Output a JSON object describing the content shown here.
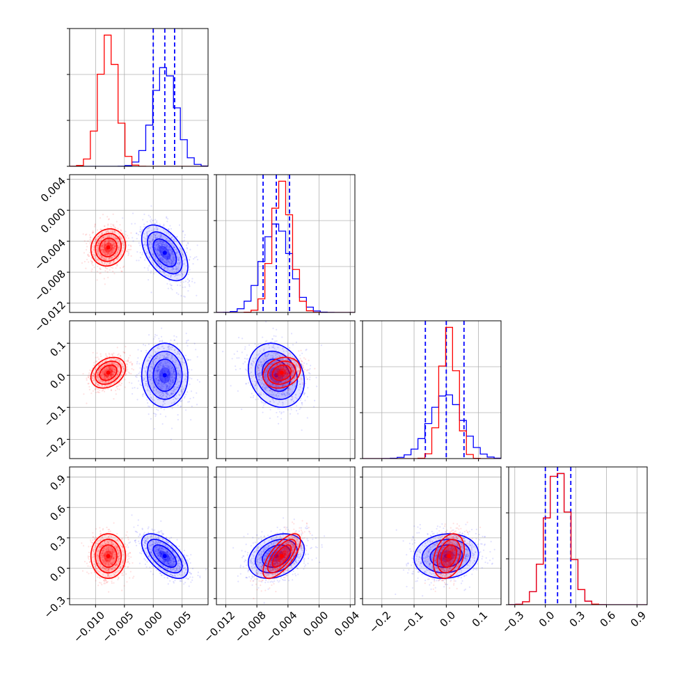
{
  "chart_data": {
    "type": "corner",
    "grid": true,
    "colors": {
      "blue": "#0000ff",
      "red": "#ff0000"
    },
    "parameters": [
      {
        "range": [
          -0.0145,
          0.0095
        ],
        "ticks": [
          -0.01,
          -0.005,
          0.0,
          0.005
        ],
        "tick_labels": [
          "−0.010",
          "−0.005",
          "0.000",
          "0.005"
        ]
      },
      {
        "range": [
          -0.0132,
          0.0046
        ],
        "ticks": [
          -0.012,
          -0.008,
          -0.004,
          0.0,
          0.004
        ],
        "tick_labels": [
          "−0.012",
          "−0.008",
          "−0.004",
          "0.000",
          "0.004"
        ]
      },
      {
        "range": [
          -0.26,
          0.17
        ],
        "ticks": [
          -0.2,
          -0.1,
          0.0,
          0.1
        ],
        "tick_labels": [
          "−0.2",
          "−0.1",
          "0.0",
          "0.1"
        ]
      },
      {
        "range": [
          -0.36,
          1.0
        ],
        "ticks": [
          -0.3,
          0.0,
          0.3,
          0.6,
          0.9
        ],
        "tick_labels": [
          "−0.3",
          "0.0",
          "0.3",
          "0.6",
          "0.9"
        ]
      }
    ],
    "series": [
      {
        "color": "blue",
        "means": [
          0.002,
          -0.0055,
          0.0,
          0.12
        ],
        "sigmas": [
          0.002,
          0.0018,
          0.05,
          0.11
        ],
        "correlations": [
          [
            1,
            -0.5,
            0.0,
            -0.6
          ],
          [
            -0.5,
            1,
            -0.2,
            0.3
          ],
          [
            0.0,
            -0.2,
            1,
            0.1
          ],
          [
            -0.6,
            0.3,
            0.1,
            1
          ]
        ],
        "quantiles": [
          [
            0.0,
            0.002,
            0.0037
          ],
          [
            -0.0072,
            -0.0055,
            -0.0038
          ],
          [
            -0.065,
            0.0,
            0.055
          ],
          [
            0.0,
            0.12,
            0.25
          ]
        ]
      },
      {
        "color": "red",
        "means": [
          -0.0078,
          -0.0048,
          0.008,
          0.12
        ],
        "sigmas": [
          0.0015,
          0.0012,
          0.024,
          0.11
        ],
        "correlations": [
          [
            1,
            0.1,
            0.3,
            0.0
          ],
          [
            0.1,
            1,
            0.2,
            0.7
          ],
          [
            0.3,
            0.2,
            1,
            0.3
          ],
          [
            0.0,
            0.7,
            0.3,
            1
          ]
        ],
        "quantiles": []
      }
    ]
  }
}
